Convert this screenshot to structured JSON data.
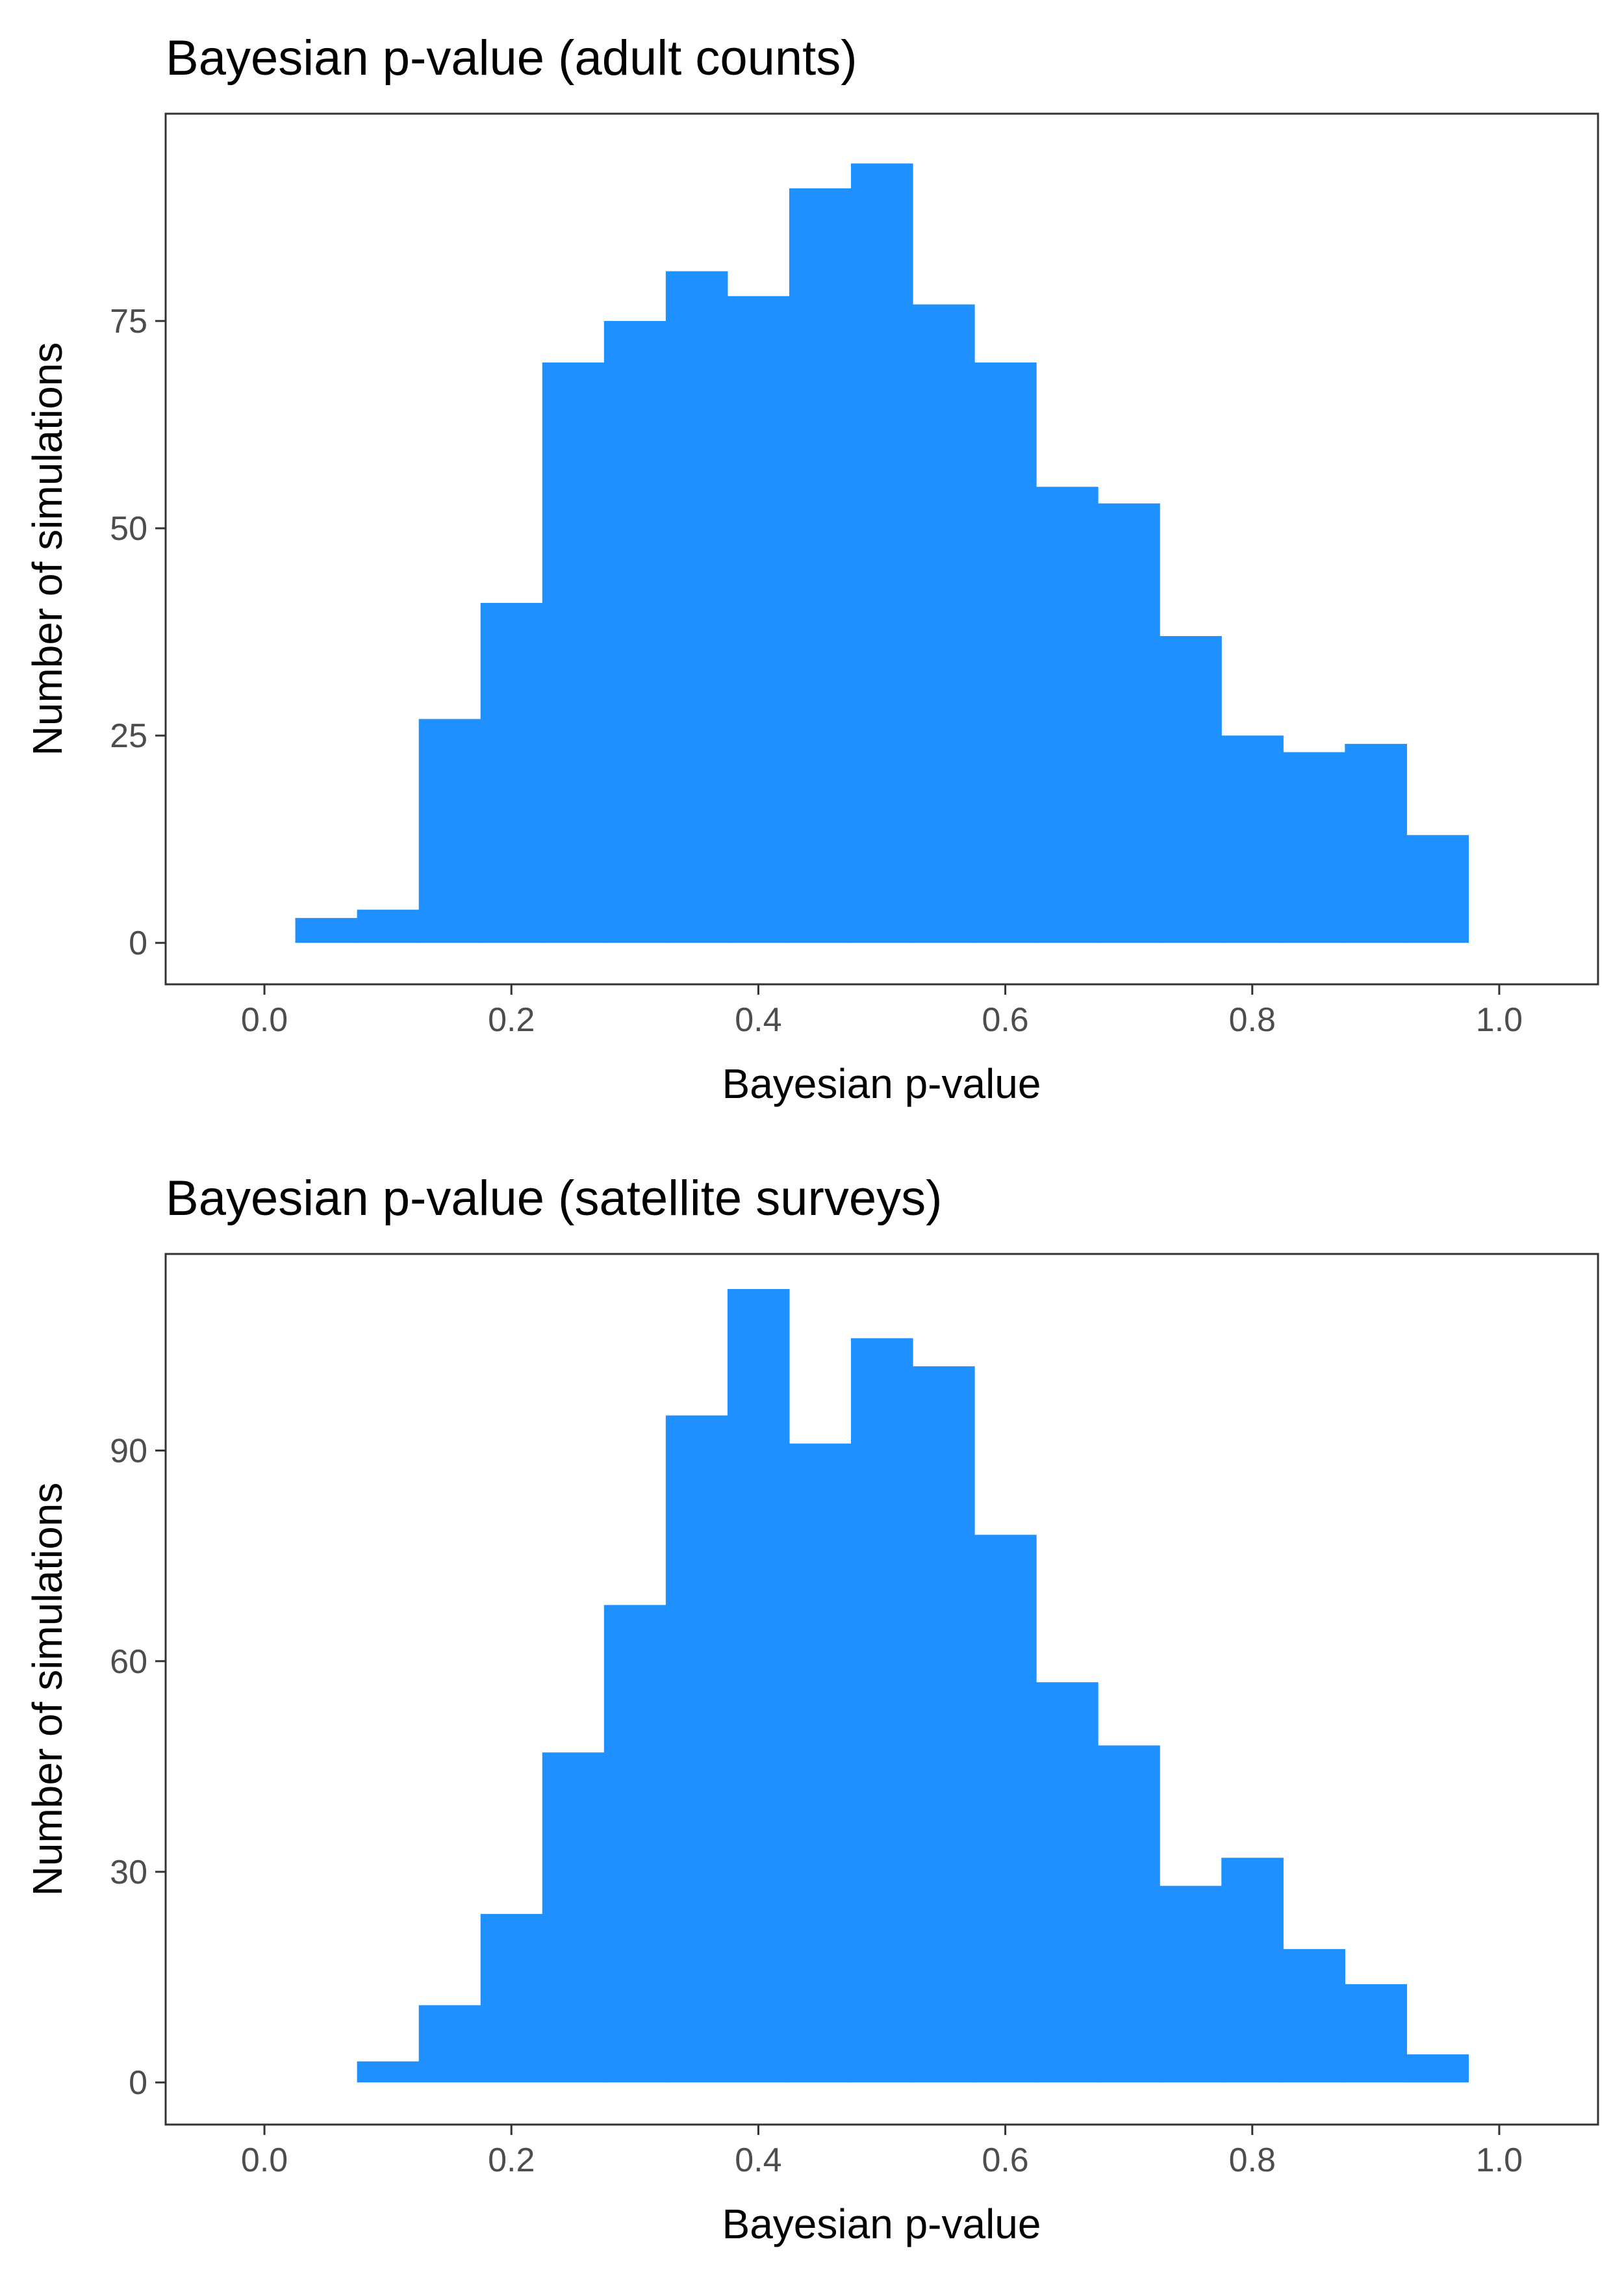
{
  "chart_data": [
    {
      "type": "bar",
      "title": "Bayesian p-value (adult counts)",
      "xlabel": "Bayesian p-value",
      "ylabel": "Number of simulations",
      "xlim": [
        -0.08,
        1.08
      ],
      "ylim": [
        -5,
        100
      ],
      "xticks": [
        0.0,
        0.2,
        0.4,
        0.6,
        0.8,
        1.0
      ],
      "xtick_labels": [
        "0.0",
        "0.2",
        "0.4",
        "0.6",
        "0.8",
        "1.0"
      ],
      "yticks": [
        0,
        25,
        50,
        75
      ],
      "ytick_labels": [
        "0",
        "25",
        "50",
        "75"
      ],
      "bin_width": 0.05,
      "bin_centers": [
        0.05,
        0.1,
        0.15,
        0.2,
        0.25,
        0.3,
        0.35,
        0.4,
        0.45,
        0.5,
        0.55,
        0.6,
        0.65,
        0.7,
        0.75,
        0.8,
        0.85,
        0.9,
        0.95
      ],
      "values": [
        3,
        4,
        27,
        41,
        70,
        75,
        81,
        78,
        91,
        94,
        77,
        70,
        55,
        53,
        37,
        25,
        23,
        24,
        13
      ],
      "color": "#1E90FF",
      "grid": false
    },
    {
      "type": "bar",
      "title": "Bayesian p-value (satellite surveys)",
      "xlabel": "Bayesian p-value",
      "ylabel": "Number of simulations",
      "xlim": [
        -0.08,
        1.08
      ],
      "ylim": [
        -6,
        118
      ],
      "xticks": [
        0.0,
        0.2,
        0.4,
        0.6,
        0.8,
        1.0
      ],
      "xtick_labels": [
        "0.0",
        "0.2",
        "0.4",
        "0.6",
        "0.8",
        "1.0"
      ],
      "yticks": [
        0,
        30,
        60,
        90
      ],
      "ytick_labels": [
        "0",
        "30",
        "60",
        "90"
      ],
      "bin_width": 0.05,
      "bin_centers": [
        0.1,
        0.15,
        0.2,
        0.25,
        0.3,
        0.35,
        0.4,
        0.45,
        0.5,
        0.55,
        0.6,
        0.65,
        0.7,
        0.75,
        0.8,
        0.85,
        0.9,
        0.95
      ],
      "values": [
        3,
        11,
        24,
        47,
        68,
        95,
        113,
        91,
        106,
        102,
        78,
        57,
        48,
        28,
        32,
        19,
        14,
        4
      ],
      "color": "#1E90FF",
      "grid": false
    }
  ]
}
